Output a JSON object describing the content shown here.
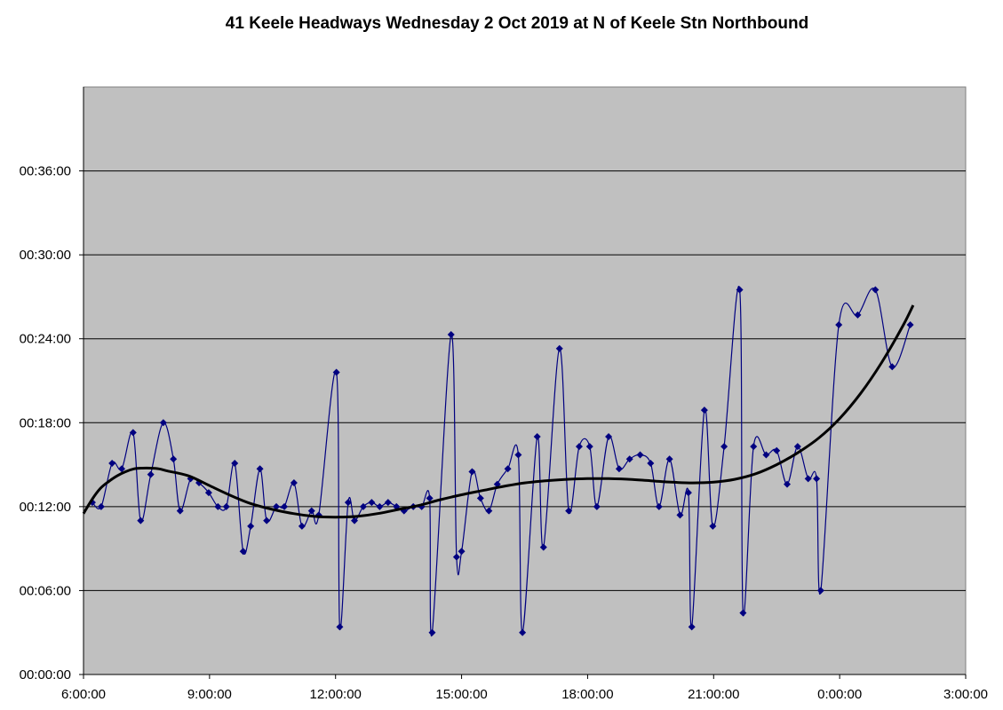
{
  "chart_data": {
    "type": "line",
    "title": "41 Keele Headways Wednesday 2 Oct 2019 at N of Keele Stn Northbound",
    "xlabel": "",
    "ylabel": "",
    "x_unit": "hours since 0:00 (values past 24 are after midnight)",
    "y_unit": "minutes",
    "xlim": [
      6,
      27
    ],
    "ylim": [
      0,
      42
    ],
    "x_ticks": [
      {
        "value": 6,
        "label": "6:00:00"
      },
      {
        "value": 9,
        "label": "9:00:00"
      },
      {
        "value": 12,
        "label": "12:00:00"
      },
      {
        "value": 15,
        "label": "15:00:00"
      },
      {
        "value": 18,
        "label": "18:00:00"
      },
      {
        "value": 21,
        "label": "21:00:00"
      },
      {
        "value": 24,
        "label": "0:00:00"
      },
      {
        "value": 27,
        "label": "3:00:00"
      }
    ],
    "y_ticks": [
      {
        "value": 0,
        "label": "00:00:00"
      },
      {
        "value": 6,
        "label": "00:06:00"
      },
      {
        "value": 12,
        "label": "00:12:00"
      },
      {
        "value": 18,
        "label": "00:18:00"
      },
      {
        "value": 24,
        "label": "00:24:00"
      },
      {
        "value": 30,
        "label": "00:30:00"
      },
      {
        "value": 36,
        "label": "00:36:00"
      }
    ],
    "grid": {
      "horizontal": true,
      "vertical": false
    },
    "legend": "none",
    "series": [
      {
        "name": "",
        "kind": "headways",
        "color": "#000080",
        "marker": "diamond",
        "points": [
          [
            6.21,
            12.3
          ],
          [
            6.42,
            12.0
          ],
          [
            6.68,
            15.1
          ],
          [
            6.91,
            14.7
          ],
          [
            7.18,
            17.3
          ],
          [
            7.36,
            11.0
          ],
          [
            7.6,
            14.3
          ],
          [
            7.9,
            18.0
          ],
          [
            8.14,
            15.4
          ],
          [
            8.3,
            11.7
          ],
          [
            8.55,
            14.0
          ],
          [
            8.75,
            13.7
          ],
          [
            8.98,
            13.0
          ],
          [
            9.2,
            12.0
          ],
          [
            9.4,
            12.0
          ],
          [
            9.6,
            15.1
          ],
          [
            9.8,
            8.8
          ],
          [
            9.98,
            10.6
          ],
          [
            10.2,
            14.7
          ],
          [
            10.36,
            11.0
          ],
          [
            10.59,
            12.0
          ],
          [
            10.78,
            12.0
          ],
          [
            11.01,
            13.7
          ],
          [
            11.2,
            10.6
          ],
          [
            11.43,
            11.7
          ],
          [
            11.6,
            11.4
          ],
          [
            12.02,
            21.6
          ],
          [
            12.1,
            3.4
          ],
          [
            12.3,
            12.3
          ],
          [
            12.45,
            11.0
          ],
          [
            12.66,
            12.0
          ],
          [
            12.86,
            12.3
          ],
          [
            13.05,
            12.0
          ],
          [
            13.25,
            12.3
          ],
          [
            13.45,
            12.0
          ],
          [
            13.63,
            11.7
          ],
          [
            13.85,
            12.0
          ],
          [
            14.05,
            12.0
          ],
          [
            14.24,
            12.6
          ],
          [
            14.3,
            3.0
          ],
          [
            14.75,
            24.3
          ],
          [
            14.88,
            8.4
          ],
          [
            15.0,
            8.8
          ],
          [
            15.25,
            14.5
          ],
          [
            15.45,
            12.6
          ],
          [
            15.65,
            11.7
          ],
          [
            15.85,
            13.6
          ],
          [
            16.1,
            14.7
          ],
          [
            16.35,
            15.7
          ],
          [
            16.45,
            3.0
          ],
          [
            16.8,
            17.0
          ],
          [
            16.95,
            9.1
          ],
          [
            17.33,
            23.3
          ],
          [
            17.55,
            11.7
          ],
          [
            17.8,
            16.3
          ],
          [
            18.05,
            16.3
          ],
          [
            18.22,
            12.0
          ],
          [
            18.5,
            17.0
          ],
          [
            18.75,
            14.7
          ],
          [
            19.0,
            15.4
          ],
          [
            19.25,
            15.7
          ],
          [
            19.5,
            15.1
          ],
          [
            19.7,
            12.0
          ],
          [
            19.95,
            15.4
          ],
          [
            20.2,
            11.4
          ],
          [
            20.4,
            13.0
          ],
          [
            20.48,
            3.4
          ],
          [
            20.78,
            18.9
          ],
          [
            20.98,
            10.6
          ],
          [
            21.25,
            16.3
          ],
          [
            21.62,
            27.5
          ],
          [
            21.7,
            4.4
          ],
          [
            21.95,
            16.3
          ],
          [
            22.25,
            15.7
          ],
          [
            22.5,
            16.0
          ],
          [
            22.75,
            13.6
          ],
          [
            23.0,
            16.3
          ],
          [
            23.25,
            14.0
          ],
          [
            23.45,
            14.0
          ],
          [
            23.55,
            6.0
          ],
          [
            23.98,
            25.0
          ],
          [
            24.43,
            25.7
          ],
          [
            24.85,
            27.5
          ],
          [
            25.25,
            22.0
          ],
          [
            25.68,
            25.0
          ]
        ]
      },
      {
        "name": "",
        "kind": "trendline",
        "color": "#000000",
        "points": [
          [
            6.0,
            11.5
          ],
          [
            6.2,
            12.5
          ],
          [
            6.4,
            13.3
          ],
          [
            6.6,
            13.8
          ],
          [
            6.8,
            14.2
          ],
          [
            7.0,
            14.5
          ],
          [
            7.2,
            14.7
          ],
          [
            7.4,
            14.75
          ],
          [
            7.6,
            14.75
          ],
          [
            7.8,
            14.7
          ],
          [
            8.0,
            14.55
          ],
          [
            8.5,
            14.2
          ],
          [
            9.0,
            13.5
          ],
          [
            9.5,
            12.8
          ],
          [
            10.0,
            12.2
          ],
          [
            10.5,
            11.8
          ],
          [
            11.0,
            11.5
          ],
          [
            11.5,
            11.3
          ],
          [
            12.0,
            11.25
          ],
          [
            12.5,
            11.3
          ],
          [
            13.0,
            11.5
          ],
          [
            13.5,
            11.8
          ],
          [
            14.0,
            12.1
          ],
          [
            14.5,
            12.5
          ],
          [
            15.0,
            12.85
          ],
          [
            15.5,
            13.15
          ],
          [
            16.0,
            13.45
          ],
          [
            16.5,
            13.7
          ],
          [
            17.0,
            13.85
          ],
          [
            17.5,
            13.95
          ],
          [
            18.0,
            14.0
          ],
          [
            18.5,
            14.0
          ],
          [
            19.0,
            13.95
          ],
          [
            19.5,
            13.85
          ],
          [
            20.0,
            13.75
          ],
          [
            20.5,
            13.7
          ],
          [
            21.0,
            13.75
          ],
          [
            21.5,
            13.95
          ],
          [
            22.0,
            14.35
          ],
          [
            22.5,
            15.0
          ],
          [
            23.0,
            15.85
          ],
          [
            23.5,
            16.9
          ],
          [
            24.0,
            18.3
          ],
          [
            24.5,
            20.1
          ],
          [
            25.0,
            22.3
          ],
          [
            25.5,
            24.9
          ],
          [
            25.75,
            26.4
          ]
        ]
      }
    ]
  }
}
